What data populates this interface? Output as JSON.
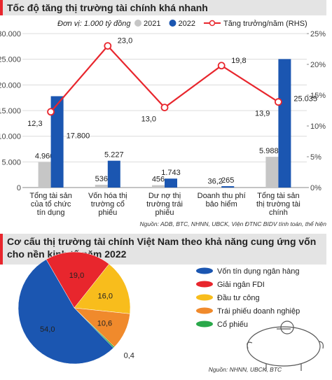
{
  "chart_data": [
    {
      "type": "bar",
      "title": "Tốc độ tăng thị trường tài chính khá nhanh",
      "note": "Đơn vị: 1.000 tỷ đồng",
      "source": "Nguồn: ADB, BTC, NHNN, UBCK, Viện ĐTNC BIDV tính toán, thể hiện",
      "categories": [
        "Tổng tài sản của tổ chức tín dụng",
        "Vốn hóa thị trường cổ phiếu",
        "Dư nợ thị trường trái phiếu",
        "Doanh thu phí bảo hiểm",
        "Tổng tài sản thị trường tài chính"
      ],
      "series": [
        {
          "name": "2021",
          "kind": "bar",
          "color": "#c6c6c6",
          "values": [
            4960,
            536,
            456,
            36.2,
            5988.2
          ],
          "value_labels": [
            "4.960",
            "536",
            "456",
            "36,2",
            "5.988,2"
          ]
        },
        {
          "name": "2022",
          "kind": "bar",
          "color": "#1b56b1",
          "values": [
            17800,
            5227,
            1743,
            265,
            25035
          ],
          "value_labels": [
            "17.800",
            "5.227",
            "1.743",
            "265",
            "25.035"
          ]
        },
        {
          "name": "Tăng trưởng/năm (RHS)",
          "kind": "line",
          "axis": "y2",
          "color": "#e8262d",
          "values": [
            12.3,
            23.0,
            13.0,
            19.8,
            13.9
          ],
          "value_labels": [
            "12,3",
            "23,0",
            "13,0",
            "19,8",
            "13,9"
          ]
        }
      ],
      "ylim": [
        0,
        30000
      ],
      "yticks": [
        0,
        {
          "value": 5000,
          "label": "5.000"
        },
        {
          "value": 10000,
          "label": "10.000"
        },
        {
          "value": 15000,
          "label": "15.000"
        },
        {
          "value": 20000,
          "label": "20.000"
        },
        {
          "value": 25000,
          "label": "25.000"
        },
        {
          "value": 30000,
          "label": "30.000"
        }
      ],
      "y2lim": [
        0,
        25
      ],
      "y2ticks": [
        {
          "value": 0,
          "label": "0%"
        },
        {
          "value": 5,
          "label": "5%"
        },
        {
          "value": 10,
          "label": "10%"
        },
        {
          "value": 15,
          "label": "15%"
        },
        {
          "value": 20,
          "label": "20%"
        },
        {
          "value": 25,
          "label": "25%"
        }
      ],
      "grid": true
    },
    {
      "type": "pie",
      "title": "Cơ cấu thị trường tài chính Việt Nam theo khả năng cung ứng vốn cho nền kinh tế năm 2022",
      "source": "Nguồn: NHNN, UBCK, BTC",
      "categories": [
        "Giải ngân FDI",
        "Đầu tư công",
        "Trái phiếu doanh nghiệp",
        "Cổ phiếu",
        "Vốn tín dụng ngân hàng"
      ],
      "values": [
        19.0,
        16.0,
        10.6,
        0.4,
        54.0
      ],
      "value_labels": [
        "19,0",
        "16,0",
        "10,6",
        "0,4",
        "54,0"
      ],
      "colors": [
        "#e8262d",
        "#f8bd1c",
        "#f08a2c",
        "#2aa84a",
        "#1b56b1"
      ],
      "legend_order": [
        4,
        0,
        1,
        2,
        3
      ]
    }
  ]
}
